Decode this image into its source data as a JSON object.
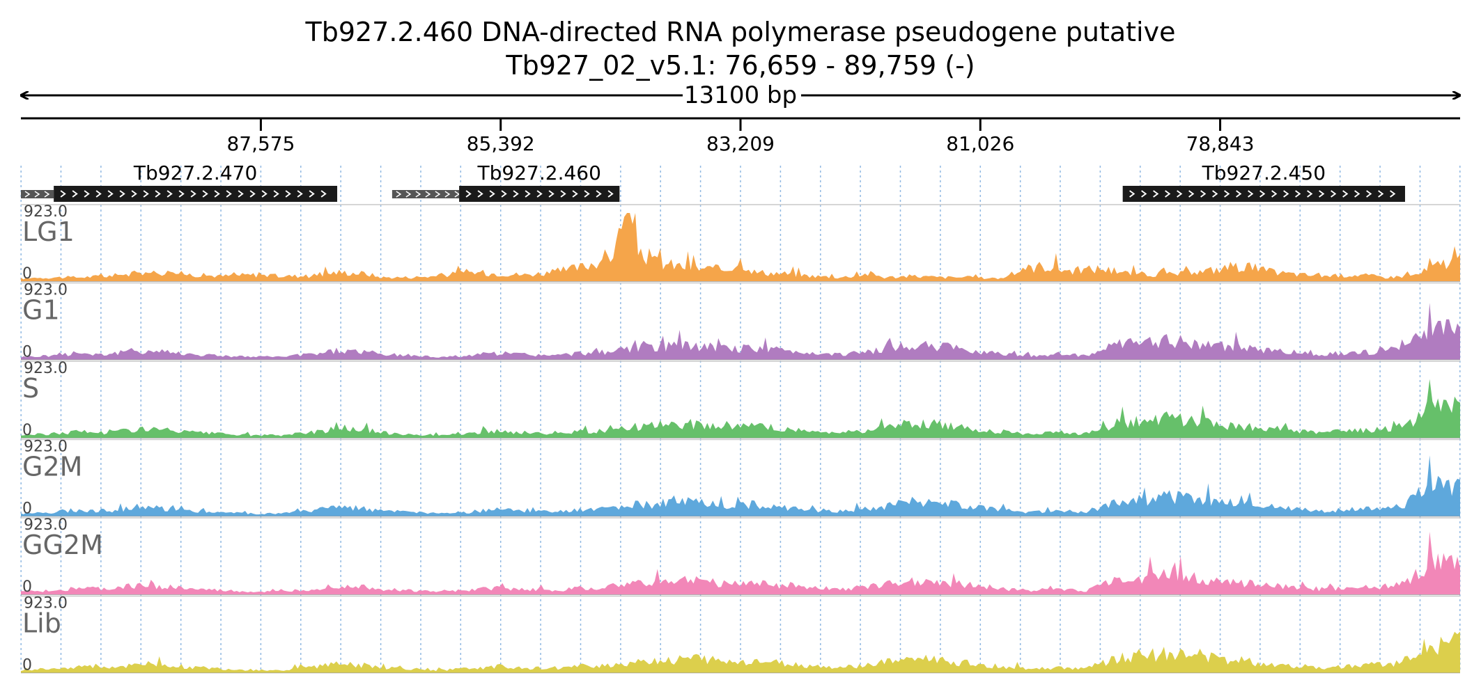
{
  "header": {
    "title": "Tb927.2.460  DNA-directed RNA polymerase  pseudogene  putative",
    "locus": "Tb927_02_v5.1: 76,659 - 89,759 (-)"
  },
  "chart_data": {
    "type": "area",
    "span_label": "13100 bp",
    "region": {
      "start": 76659,
      "end": 89759,
      "strand": "-"
    },
    "ticks": [
      {
        "value": 87575,
        "label": "87,575"
      },
      {
        "value": 85392,
        "label": "85,392"
      },
      {
        "value": 83209,
        "label": "83,209"
      },
      {
        "value": 81026,
        "label": "81,026"
      },
      {
        "value": 78843,
        "label": "78,843"
      }
    ],
    "genes": [
      {
        "name": "Tb927.2.470",
        "start": 89759,
        "end": 86880,
        "utr_end": 89460
      },
      {
        "name": "Tb927.2.460",
        "start": 86380,
        "end": 84310,
        "utr_end": 85770
      },
      {
        "name": "Tb927.2.450",
        "start": 79730,
        "end": 77160,
        "utr_end": 79730
      }
    ],
    "ymax_label": "923.0",
    "ymin_label": "0",
    "ymax": 923,
    "tracks": [
      {
        "name": "LG1",
        "color": "#f5a54a"
      },
      {
        "name": "G1",
        "color": "#b07cc0"
      },
      {
        "name": "S",
        "color": "#66c06a"
      },
      {
        "name": "G2M",
        "color": "#5ea8dc"
      },
      {
        "name": "GG2M",
        "color": "#f287b8"
      },
      {
        "name": "Lib",
        "color": "#dccf4c"
      }
    ],
    "coverage_profiles": {
      "base": [
        [
          0,
          4
        ],
        [
          2,
          6
        ],
        [
          4,
          10
        ],
        [
          6,
          8
        ],
        [
          8,
          14
        ],
        [
          10,
          12
        ],
        [
          12,
          8
        ],
        [
          14,
          6
        ],
        [
          16,
          4
        ],
        [
          18,
          4
        ],
        [
          20,
          8
        ],
        [
          22,
          14
        ],
        [
          24,
          12
        ],
        [
          25,
          8
        ],
        [
          27,
          6
        ],
        [
          29,
          4
        ],
        [
          31,
          6
        ],
        [
          33,
          10
        ],
        [
          35,
          8
        ],
        [
          37,
          6
        ],
        [
          39,
          10
        ],
        [
          41,
          12
        ],
        [
          43,
          18
        ],
        [
          45,
          20
        ],
        [
          47,
          22
        ],
        [
          49,
          16
        ],
        [
          51,
          18
        ],
        [
          53,
          14
        ],
        [
          55,
          10
        ],
        [
          57,
          8
        ],
        [
          59,
          12
        ],
        [
          60,
          16
        ],
        [
          62,
          22
        ],
        [
          64,
          20
        ],
        [
          66,
          14
        ],
        [
          68,
          10
        ],
        [
          70,
          6
        ],
        [
          72,
          8
        ],
        [
          74,
          6
        ],
        [
          76,
          22
        ],
        [
          78,
          26
        ],
        [
          80,
          30
        ],
        [
          82,
          24
        ],
        [
          84,
          20
        ],
        [
          86,
          16
        ],
        [
          88,
          12
        ],
        [
          90,
          8
        ],
        [
          92,
          10
        ],
        [
          94,
          12
        ],
        [
          96,
          16
        ],
        [
          98,
          46
        ]
      ],
      "LG1": [
        [
          0,
          4
        ],
        [
          2,
          6
        ],
        [
          4,
          6
        ],
        [
          6,
          8
        ],
        [
          8,
          12
        ],
        [
          10,
          14
        ],
        [
          12,
          10
        ],
        [
          14,
          8
        ],
        [
          16,
          10
        ],
        [
          18,
          8
        ],
        [
          20,
          8
        ],
        [
          22,
          14
        ],
        [
          24,
          12
        ],
        [
          25,
          6
        ],
        [
          27,
          6
        ],
        [
          29,
          8
        ],
        [
          31,
          14
        ],
        [
          33,
          12
        ],
        [
          35,
          10
        ],
        [
          37,
          14
        ],
        [
          39,
          22
        ],
        [
          41,
          40
        ],
        [
          42,
          90
        ],
        [
          43,
          50
        ],
        [
          44,
          30
        ],
        [
          45,
          26
        ],
        [
          47,
          20
        ],
        [
          49,
          18
        ],
        [
          50,
          32
        ],
        [
          51,
          14
        ],
        [
          53,
          12
        ],
        [
          55,
          8
        ],
        [
          57,
          6
        ],
        [
          59,
          12
        ],
        [
          60,
          6
        ],
        [
          62,
          8
        ],
        [
          64,
          6
        ],
        [
          66,
          6
        ],
        [
          68,
          4
        ],
        [
          70,
          20
        ],
        [
          71,
          24
        ],
        [
          73,
          16
        ],
        [
          75,
          20
        ],
        [
          77,
          12
        ],
        [
          79,
          10
        ],
        [
          81,
          12
        ],
        [
          83,
          18
        ],
        [
          85,
          24
        ],
        [
          87,
          14
        ],
        [
          89,
          10
        ],
        [
          91,
          8
        ],
        [
          93,
          10
        ],
        [
          95,
          6
        ],
        [
          97,
          10
        ],
        [
          99,
          30
        ]
      ]
    }
  }
}
